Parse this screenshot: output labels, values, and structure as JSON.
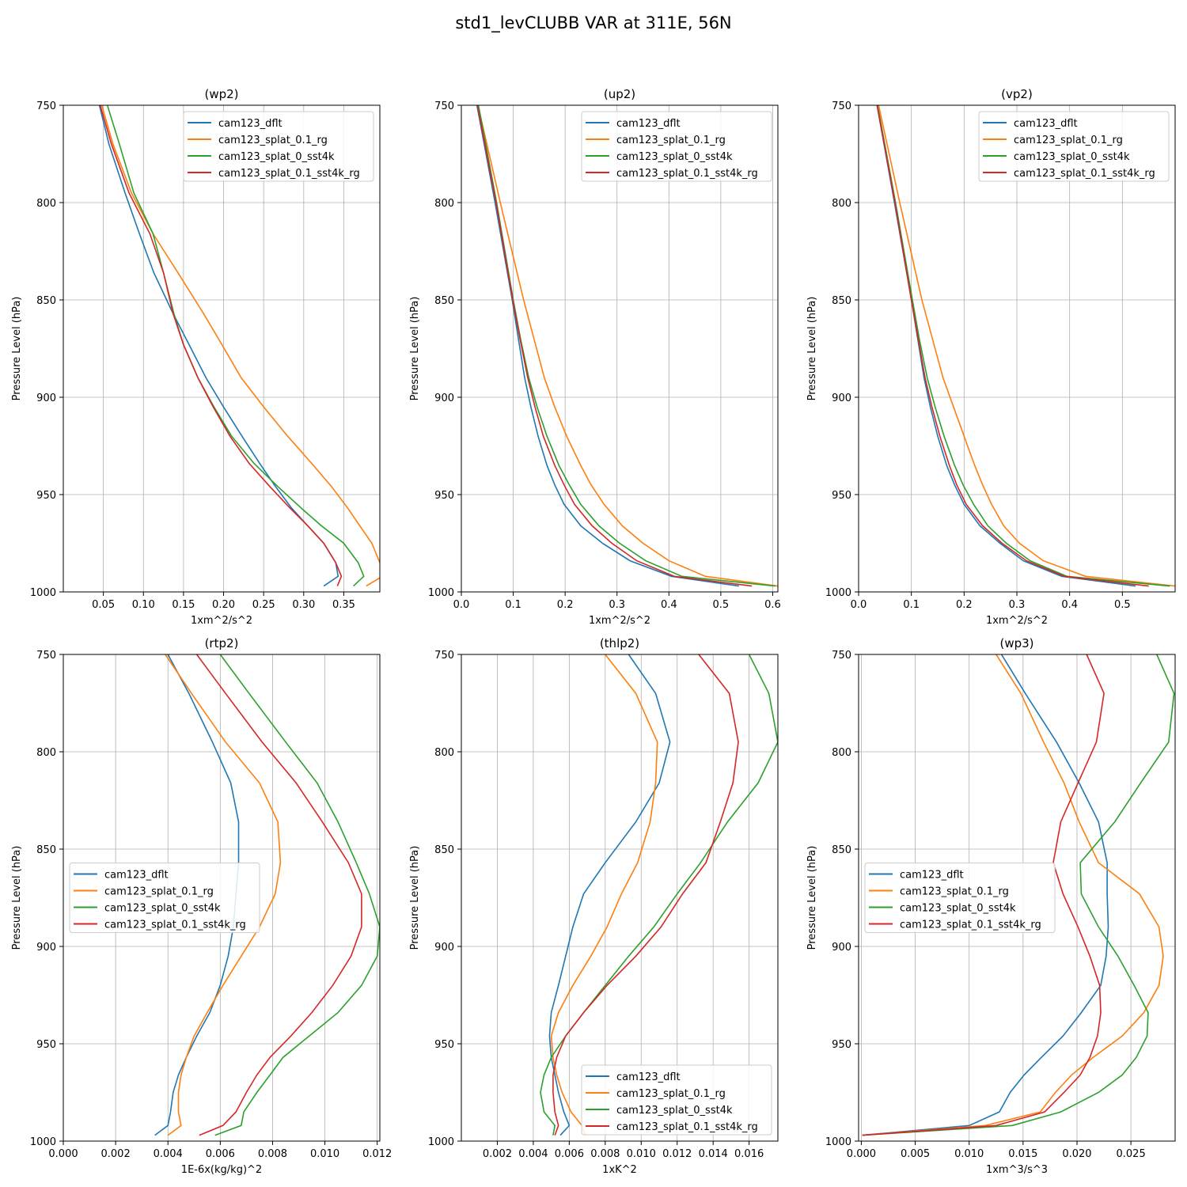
{
  "suptitle": "std1_levCLUBB VAR at 311E, 56N",
  "colors": {
    "s0": "#1f77b4",
    "s1": "#ff7f0e",
    "s2": "#2ca02c",
    "s3": "#d62728"
  },
  "chart_data": [
    {
      "type": "line",
      "title": "(wp2)",
      "xlabel": "1xm^2/s^2",
      "ylabel": "Pressure Level (hPa)",
      "xlim": [
        0.0,
        0.395
      ],
      "ylim": [
        1000,
        750
      ],
      "grid": true,
      "legend": "upper-right",
      "xticks": [
        0.05,
        0.1,
        0.15,
        0.2,
        0.25,
        0.3,
        0.35
      ],
      "xtick_labels": [
        "0.05",
        "0.10",
        "0.15",
        "0.20",
        "0.25",
        "0.30",
        "0.35"
      ],
      "yticks": [
        750,
        800,
        850,
        900,
        950,
        1000
      ],
      "ytick_labels": [
        "750",
        "800",
        "850",
        "900",
        "950",
        "1000"
      ],
      "levels": [
        750,
        770,
        795,
        816,
        836,
        857,
        873,
        890,
        905,
        920,
        934,
        946,
        957,
        966,
        975,
        985,
        992,
        997
      ],
      "series": [
        {
          "name": "cam123_dflt",
          "values": [
            0.045,
            0.057,
            0.077,
            0.095,
            0.113,
            0.137,
            0.157,
            0.178,
            0.2,
            0.223,
            0.245,
            0.265,
            0.285,
            0.305,
            0.325,
            0.34,
            0.343,
            0.325
          ]
        },
        {
          "name": "cam123_splat_0.1_rg",
          "values": [
            0.048,
            0.062,
            0.085,
            0.112,
            0.143,
            0.175,
            0.198,
            0.222,
            0.25,
            0.28,
            0.31,
            0.335,
            0.355,
            0.37,
            0.385,
            0.395,
            0.398,
            0.378
          ]
        },
        {
          "name": "cam123_splat_0_sst4k",
          "values": [
            0.055,
            0.07,
            0.088,
            0.112,
            0.125,
            0.138,
            0.15,
            0.168,
            0.188,
            0.21,
            0.238,
            0.268,
            0.297,
            0.322,
            0.35,
            0.368,
            0.375,
            0.362
          ]
        },
        {
          "name": "cam123_splat_0.1_sst4k_rg",
          "values": [
            0.046,
            0.06,
            0.082,
            0.108,
            0.125,
            0.137,
            0.15,
            0.168,
            0.187,
            0.208,
            0.232,
            0.258,
            0.283,
            0.305,
            0.325,
            0.34,
            0.347,
            0.342
          ]
        }
      ]
    },
    {
      "type": "line",
      "title": "(up2)",
      "xlabel": "1xm^2/s^2",
      "ylabel": "Pressure Level (hPa)",
      "xlim": [
        0.0,
        0.61
      ],
      "ylim": [
        1000,
        750
      ],
      "grid": true,
      "legend": "upper-right",
      "xticks": [
        0.0,
        0.1,
        0.2,
        0.3,
        0.4,
        0.5,
        0.6
      ],
      "xtick_labels": [
        "0.0",
        "0.1",
        "0.2",
        "0.3",
        "0.4",
        "0.5",
        "0.6"
      ],
      "yticks": [
        750,
        800,
        850,
        900,
        950,
        1000
      ],
      "ytick_labels": [
        "750",
        "800",
        "850",
        "900",
        "950",
        "1000"
      ],
      "levels": [
        750,
        800,
        850,
        870,
        890,
        905,
        920,
        935,
        945,
        955,
        966,
        975,
        984,
        992,
        997
      ],
      "series": [
        {
          "name": "cam123_dflt",
          "values": [
            0.03,
            0.065,
            0.098,
            0.11,
            0.122,
            0.134,
            0.148,
            0.165,
            0.18,
            0.198,
            0.23,
            0.272,
            0.325,
            0.405,
            0.535
          ]
        },
        {
          "name": "cam123_splat_0.1_rg",
          "values": [
            0.032,
            0.075,
            0.12,
            0.14,
            0.16,
            0.18,
            0.203,
            0.23,
            0.25,
            0.275,
            0.31,
            0.35,
            0.4,
            0.47,
            0.61
          ]
        },
        {
          "name": "cam123_splat_0_sst4k",
          "values": [
            0.033,
            0.068,
            0.1,
            0.114,
            0.13,
            0.146,
            0.165,
            0.188,
            0.208,
            0.23,
            0.265,
            0.305,
            0.355,
            0.425,
            0.605
          ]
        },
        {
          "name": "cam123_splat_0.1_sst4k_rg",
          "values": [
            0.031,
            0.067,
            0.099,
            0.113,
            0.128,
            0.142,
            0.158,
            0.18,
            0.198,
            0.218,
            0.252,
            0.29,
            0.338,
            0.41,
            0.56
          ]
        }
      ]
    },
    {
      "type": "line",
      "title": "(vp2)",
      "xlabel": "1xm^2/s^2",
      "ylabel": "Pressure Level (hPa)",
      "xlim": [
        0.0,
        0.6
      ],
      "ylim": [
        1000,
        750
      ],
      "grid": true,
      "legend": "upper-right",
      "xticks": [
        0.0,
        0.1,
        0.2,
        0.3,
        0.4,
        0.5
      ],
      "xtick_labels": [
        "0.0",
        "0.1",
        "0.2",
        "0.3",
        "0.4",
        "0.5"
      ],
      "yticks": [
        750,
        800,
        850,
        900,
        950,
        1000
      ],
      "ytick_labels": [
        "750",
        "800",
        "850",
        "900",
        "950",
        "1000"
      ],
      "levels": [
        750,
        800,
        850,
        870,
        890,
        905,
        920,
        935,
        945,
        955,
        966,
        975,
        984,
        992,
        997
      ],
      "series": [
        {
          "name": "cam123_dflt",
          "values": [
            0.035,
            0.068,
            0.1,
            0.112,
            0.124,
            0.136,
            0.15,
            0.167,
            0.182,
            0.2,
            0.23,
            0.268,
            0.312,
            0.385,
            0.525
          ]
        },
        {
          "name": "cam123_splat_0.1_rg",
          "values": [
            0.038,
            0.078,
            0.12,
            0.14,
            0.16,
            0.18,
            0.2,
            0.22,
            0.235,
            0.252,
            0.275,
            0.305,
            0.35,
            0.43,
            0.6
          ]
        },
        {
          "name": "cam123_splat_0_sst4k",
          "values": [
            0.036,
            0.07,
            0.102,
            0.115,
            0.13,
            0.145,
            0.162,
            0.182,
            0.198,
            0.218,
            0.245,
            0.28,
            0.325,
            0.395,
            0.59
          ]
        },
        {
          "name": "cam123_splat_0.1_sst4k_rg",
          "values": [
            0.035,
            0.069,
            0.1,
            0.113,
            0.126,
            0.139,
            0.154,
            0.172,
            0.186,
            0.204,
            0.235,
            0.272,
            0.318,
            0.39,
            0.55
          ]
        }
      ]
    },
    {
      "type": "line",
      "title": "(rtp2)",
      "xlabel": "1E-6x(kg/kg)^2",
      "ylabel": "Pressure Level (hPa)",
      "xlim": [
        0.0,
        0.0121
      ],
      "ylim": [
        1000,
        750
      ],
      "grid": true,
      "legend": "center-left",
      "xticks": [
        0.0,
        0.002,
        0.004,
        0.006,
        0.008,
        0.01,
        0.012
      ],
      "xtick_labels": [
        "0.000",
        "0.002",
        "0.004",
        "0.006",
        "0.008",
        "0.010",
        "0.012"
      ],
      "yticks": [
        750,
        800,
        850,
        900,
        950,
        1000
      ],
      "ytick_labels": [
        "750",
        "800",
        "850",
        "900",
        "950",
        "1000"
      ],
      "levels": [
        750,
        770,
        795,
        816,
        836,
        857,
        873,
        890,
        905,
        920,
        934,
        946,
        957,
        966,
        975,
        985,
        992,
        997
      ],
      "series": [
        {
          "name": "cam123_dflt",
          "values": [
            0.004,
            0.0048,
            0.0057,
            0.0064,
            0.0067,
            0.0067,
            0.0066,
            0.0065,
            0.0063,
            0.006,
            0.0056,
            0.0051,
            0.0047,
            0.0044,
            0.0042,
            0.0041,
            0.004,
            0.0035
          ]
        },
        {
          "name": "cam123_splat_0.1_rg",
          "values": [
            0.0039,
            0.0049,
            0.0062,
            0.0075,
            0.0082,
            0.0083,
            0.0081,
            0.0075,
            0.0068,
            0.0061,
            0.0055,
            0.005,
            0.0047,
            0.0045,
            0.0044,
            0.0044,
            0.0045,
            0.004
          ]
        },
        {
          "name": "cam123_splat_0_sst4k",
          "values": [
            0.006,
            0.0071,
            0.0085,
            0.0097,
            0.0105,
            0.0112,
            0.0117,
            0.0121,
            0.012,
            0.0114,
            0.0105,
            0.0094,
            0.0084,
            0.0079,
            0.0074,
            0.0069,
            0.0068,
            0.0058
          ]
        },
        {
          "name": "cam123_splat_0.1_sst4k_rg",
          "values": [
            0.0051,
            0.0062,
            0.0076,
            0.0089,
            0.0099,
            0.0109,
            0.0114,
            0.0114,
            0.011,
            0.0103,
            0.0095,
            0.0087,
            0.0079,
            0.0074,
            0.007,
            0.0066,
            0.0061,
            0.0052
          ]
        }
      ]
    },
    {
      "type": "line",
      "title": "(thlp2)",
      "xlabel": "1xK^2",
      "ylabel": "Pressure Level (hPa)",
      "xlim": [
        0.0,
        0.0176
      ],
      "ylim": [
        1000,
        750
      ],
      "grid": true,
      "legend": "lower-right",
      "xticks": [
        0.002,
        0.004,
        0.006,
        0.008,
        0.01,
        0.012,
        0.014,
        0.016
      ],
      "xtick_labels": [
        "0.002",
        "0.004",
        "0.006",
        "0.008",
        "0.010",
        "0.012",
        "0.014",
        "0.016"
      ],
      "yticks": [
        750,
        800,
        850,
        900,
        950,
        1000
      ],
      "ytick_labels": [
        "750",
        "800",
        "850",
        "900",
        "950",
        "1000"
      ],
      "levels": [
        750,
        770,
        795,
        816,
        836,
        857,
        873,
        890,
        905,
        920,
        934,
        946,
        957,
        966,
        975,
        985,
        992,
        997
      ],
      "series": [
        {
          "name": "cam123_dflt",
          "values": [
            0.0093,
            0.0108,
            0.0116,
            0.011,
            0.0097,
            0.008,
            0.0068,
            0.0062,
            0.0058,
            0.0054,
            0.005,
            0.0049,
            0.005,
            0.0052,
            0.0054,
            0.0057,
            0.006,
            0.0055
          ]
        },
        {
          "name": "cam123_splat_0.1_rg",
          "values": [
            0.008,
            0.0097,
            0.0109,
            0.0108,
            0.0105,
            0.0098,
            0.0089,
            0.0081,
            0.0072,
            0.0062,
            0.0054,
            0.005,
            0.0051,
            0.0053,
            0.0056,
            0.0061,
            0.0067,
            0.0069
          ]
        },
        {
          "name": "cam123_splat_0_sst4k",
          "values": [
            0.016,
            0.0171,
            0.0176,
            0.0165,
            0.0148,
            0.0133,
            0.012,
            0.0107,
            0.0093,
            0.008,
            0.0068,
            0.0058,
            0.005,
            0.0046,
            0.0044,
            0.0046,
            0.0052,
            0.0051
          ]
        },
        {
          "name": "cam123_splat_0.1_sst4k_rg",
          "values": [
            0.0132,
            0.0149,
            0.0154,
            0.0151,
            0.0144,
            0.0136,
            0.0123,
            0.0111,
            0.0097,
            0.0081,
            0.0068,
            0.0058,
            0.0053,
            0.0051,
            0.0051,
            0.0052,
            0.0054,
            0.0052
          ]
        }
      ]
    },
    {
      "type": "line",
      "title": "(wp3)",
      "xlabel": "1xm^3/s^3",
      "ylabel": "Pressure Level (hPa)",
      "xlim": [
        -0.00025,
        0.0291
      ],
      "ylim": [
        1000,
        750
      ],
      "grid": true,
      "legend": "center-left",
      "xticks": [
        0.0,
        0.005,
        0.01,
        0.015,
        0.02,
        0.025
      ],
      "xtick_labels": [
        "0.000",
        "0.005",
        "0.010",
        "0.015",
        "0.020",
        "0.025"
      ],
      "yticks": [
        750,
        800,
        850,
        900,
        950,
        1000
      ],
      "ytick_labels": [
        "750",
        "800",
        "850",
        "900",
        "950",
        "1000"
      ],
      "levels": [
        750,
        770,
        795,
        816,
        836,
        857,
        873,
        890,
        905,
        920,
        934,
        946,
        957,
        966,
        975,
        985,
        992,
        997
      ],
      "series": [
        {
          "name": "cam123_dflt",
          "values": [
            0.013,
            0.0152,
            0.0181,
            0.0202,
            0.022,
            0.0228,
            0.0228,
            0.0229,
            0.0227,
            0.0222,
            0.0204,
            0.0187,
            0.0167,
            0.0151,
            0.0138,
            0.0128,
            0.01,
            0.0001
          ]
        },
        {
          "name": "cam123_splat_0.1_rg",
          "values": [
            0.0125,
            0.0148,
            0.0169,
            0.0188,
            0.0202,
            0.022,
            0.0258,
            0.0276,
            0.028,
            0.0276,
            0.0262,
            0.0242,
            0.0215,
            0.0195,
            0.018,
            0.0166,
            0.0115,
            0.0001
          ]
        },
        {
          "name": "cam123_splat_0_sst4k",
          "values": [
            0.0274,
            0.029,
            0.0285,
            0.0259,
            0.0235,
            0.0203,
            0.0204,
            0.022,
            0.0238,
            0.0253,
            0.0266,
            0.0265,
            0.0255,
            0.0242,
            0.022,
            0.0185,
            0.014,
            0.0001
          ]
        },
        {
          "name": "cam123_splat_0.1_sst4k_rg",
          "values": [
            0.0209,
            0.0225,
            0.0218,
            0.0201,
            0.0185,
            0.0178,
            0.0187,
            0.0201,
            0.0212,
            0.0221,
            0.0222,
            0.0219,
            0.0212,
            0.0203,
            0.0188,
            0.017,
            0.0125,
            0.0001
          ]
        }
      ]
    }
  ]
}
